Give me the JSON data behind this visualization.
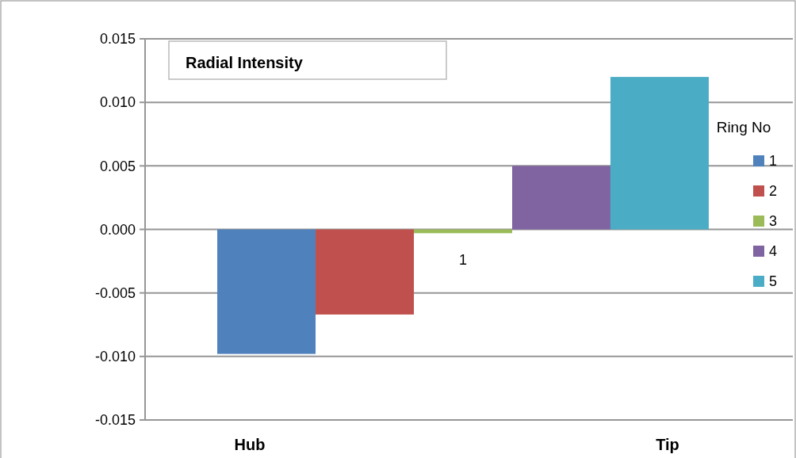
{
  "chart_data": {
    "type": "bar",
    "title": "Radial Intensity",
    "categories": [
      "1"
    ],
    "legend_title": "Ring No",
    "legend": "right",
    "series": [
      {
        "name": "1",
        "color": "#4f81bd",
        "values": [
          -0.0098
        ]
      },
      {
        "name": "2",
        "color": "#c0504d",
        "values": [
          -0.0067
        ]
      },
      {
        "name": "3",
        "color": "#9bbb59",
        "values": [
          -0.0003
        ]
      },
      {
        "name": "4",
        "color": "#8064a2",
        "values": [
          0.005
        ]
      },
      {
        "name": "5",
        "color": "#4bacc6",
        "values": [
          0.012
        ]
      }
    ],
    "ylim": [
      -0.015,
      0.015
    ],
    "yticks": [
      {
        "value": -0.015,
        "label": "-0.015"
      },
      {
        "value": -0.01,
        "label": "-0.010"
      },
      {
        "value": -0.005,
        "label": "-0.005"
      },
      {
        "value": 0,
        "label": "0.000"
      },
      {
        "value": 0.005,
        "label": "0.005"
      },
      {
        "value": 0.01,
        "label": "0.010"
      },
      {
        "value": 0.015,
        "label": "0.015"
      }
    ],
    "grid": "y",
    "annotations": [
      "Hub",
      "Tip"
    ]
  }
}
